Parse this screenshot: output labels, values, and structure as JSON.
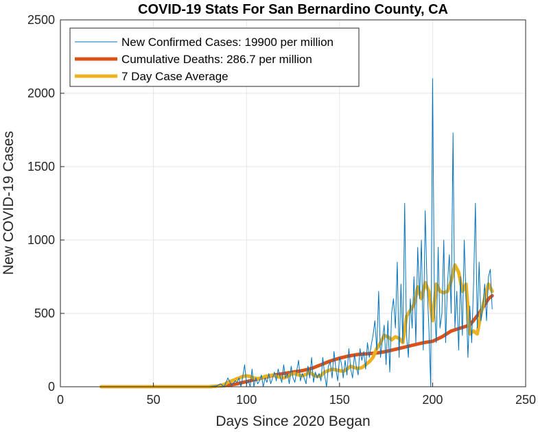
{
  "chart_data": {
    "type": "line",
    "title": "COVID-19 Stats For San Bernardino County, CA",
    "xlabel": "Days Since 2020 Began",
    "ylabel": "New COVID-19 Cases",
    "xlim": [
      0,
      250
    ],
    "ylim": [
      0,
      2500
    ],
    "xticks": [
      0,
      50,
      100,
      150,
      200,
      250
    ],
    "yticks": [
      0,
      500,
      1000,
      1500,
      2000,
      2500
    ],
    "grid": true,
    "legend_position": "top-left",
    "series": [
      {
        "name": "New Confirmed Cases: 19900 per million",
        "color": "#0072BD",
        "style": "thin",
        "x": [
          22,
          30,
          40,
          50,
          60,
          70,
          80,
          84,
          86,
          88,
          90,
          92,
          94,
          95,
          96,
          97,
          98,
          99,
          100,
          101,
          102,
          103,
          104,
          105,
          106,
          107,
          108,
          109,
          110,
          111,
          112,
          113,
          114,
          115,
          116,
          117,
          118,
          119,
          120,
          121,
          122,
          123,
          124,
          125,
          126,
          127,
          128,
          129,
          130,
          131,
          132,
          133,
          134,
          135,
          136,
          137,
          138,
          139,
          140,
          141,
          142,
          143,
          144,
          145,
          146,
          147,
          148,
          149,
          150,
          151,
          152,
          153,
          154,
          155,
          156,
          157,
          158,
          159,
          160,
          161,
          162,
          163,
          164,
          165,
          166,
          167,
          168,
          169,
          170,
          171,
          172,
          173,
          174,
          175,
          176,
          177,
          178,
          179,
          180,
          181,
          182,
          183,
          184,
          185,
          186,
          187,
          188,
          189,
          190,
          191,
          192,
          193,
          194,
          195,
          196,
          197,
          198,
          199,
          200,
          201,
          202,
          203,
          204,
          205,
          206,
          207,
          208,
          209,
          210,
          211,
          212,
          213,
          214,
          215,
          216,
          217,
          218,
          219,
          220,
          221,
          222,
          223,
          224,
          225,
          226,
          227,
          228,
          229,
          230,
          231,
          232
        ],
        "y": [
          0,
          0,
          0,
          0,
          0,
          0,
          0,
          5,
          20,
          0,
          60,
          10,
          40,
          30,
          60,
          0,
          70,
          150,
          20,
          40,
          0,
          120,
          0,
          60,
          20,
          40,
          80,
          0,
          60,
          30,
          90,
          20,
          60,
          100,
          40,
          120,
          70,
          30,
          150,
          60,
          90,
          20,
          140,
          60,
          30,
          110,
          180,
          40,
          90,
          60,
          20,
          140,
          60,
          200,
          30,
          100,
          60,
          90,
          40,
          200,
          80,
          0,
          140,
          170,
          60,
          240,
          120,
          40,
          200,
          160,
          60,
          180,
          80,
          260,
          120,
          60,
          220,
          140,
          80,
          260,
          180,
          240,
          120,
          300,
          200,
          280,
          350,
          450,
          250,
          650,
          200,
          320,
          420,
          150,
          450,
          100,
          500,
          600,
          400,
          850,
          200,
          700,
          300,
          1250,
          350,
          200,
          600,
          400,
          750,
          300,
          950,
          600,
          1000,
          250,
          1200,
          700,
          400,
          0,
          2100,
          550,
          300,
          950,
          400,
          500,
          1000,
          300,
          700,
          900,
          500,
          1730,
          400,
          650,
          250,
          750,
          350,
          1000,
          600,
          200,
          550,
          300,
          700,
          1250,
          400,
          850,
          450,
          550,
          700,
          450,
          750,
          800,
          530
        ]
      },
      {
        "name": "Cumulative Deaths: 286.7 per million",
        "color": "#D95319",
        "style": "thick",
        "x": [
          22,
          40,
          60,
          80,
          85,
          90,
          95,
          100,
          105,
          110,
          115,
          120,
          125,
          130,
          135,
          140,
          145,
          150,
          155,
          160,
          165,
          170,
          175,
          180,
          185,
          190,
          195,
          200,
          205,
          210,
          215,
          220,
          225,
          230,
          232
        ],
        "y": [
          0,
          0,
          0,
          0,
          5,
          10,
          20,
          35,
          50,
          65,
          80,
          90,
          100,
          110,
          125,
          150,
          175,
          195,
          210,
          220,
          225,
          230,
          240,
          255,
          270,
          285,
          300,
          310,
          340,
          380,
          400,
          420,
          500,
          600,
          620
        ]
      },
      {
        "name": "7 Day Case Average",
        "color": "#EDB120",
        "style": "thick",
        "x": [
          22,
          40,
          60,
          80,
          85,
          88,
          90,
          92,
          94,
          96,
          98,
          100,
          102,
          104,
          106,
          108,
          110,
          112,
          114,
          116,
          118,
          120,
          122,
          124,
          126,
          128,
          130,
          132,
          134,
          136,
          138,
          140,
          142,
          144,
          146,
          148,
          150,
          152,
          154,
          156,
          158,
          160,
          162,
          164,
          166,
          168,
          170,
          172,
          174,
          176,
          178,
          180,
          182,
          184,
          186,
          188,
          190,
          192,
          194,
          196,
          198,
          200,
          202,
          204,
          206,
          208,
          210,
          212,
          214,
          216,
          218,
          220,
          222,
          224,
          226,
          228,
          230,
          232
        ],
        "y": [
          0,
          0,
          0,
          0,
          5,
          15,
          30,
          40,
          50,
          60,
          70,
          75,
          70,
          60,
          55,
          60,
          70,
          75,
          80,
          70,
          65,
          60,
          70,
          85,
          90,
          80,
          75,
          85,
          100,
          80,
          70,
          75,
          100,
          110,
          120,
          115,
          110,
          105,
          120,
          140,
          130,
          125,
          130,
          150,
          170,
          200,
          260,
          300,
          350,
          340,
          320,
          340,
          330,
          300,
          480,
          520,
          560,
          680,
          600,
          710,
          650,
          450,
          700,
          650,
          640,
          650,
          720,
          830,
          780,
          650,
          700,
          360,
          380,
          360,
          500,
          600,
          700,
          650
        ]
      }
    ]
  }
}
